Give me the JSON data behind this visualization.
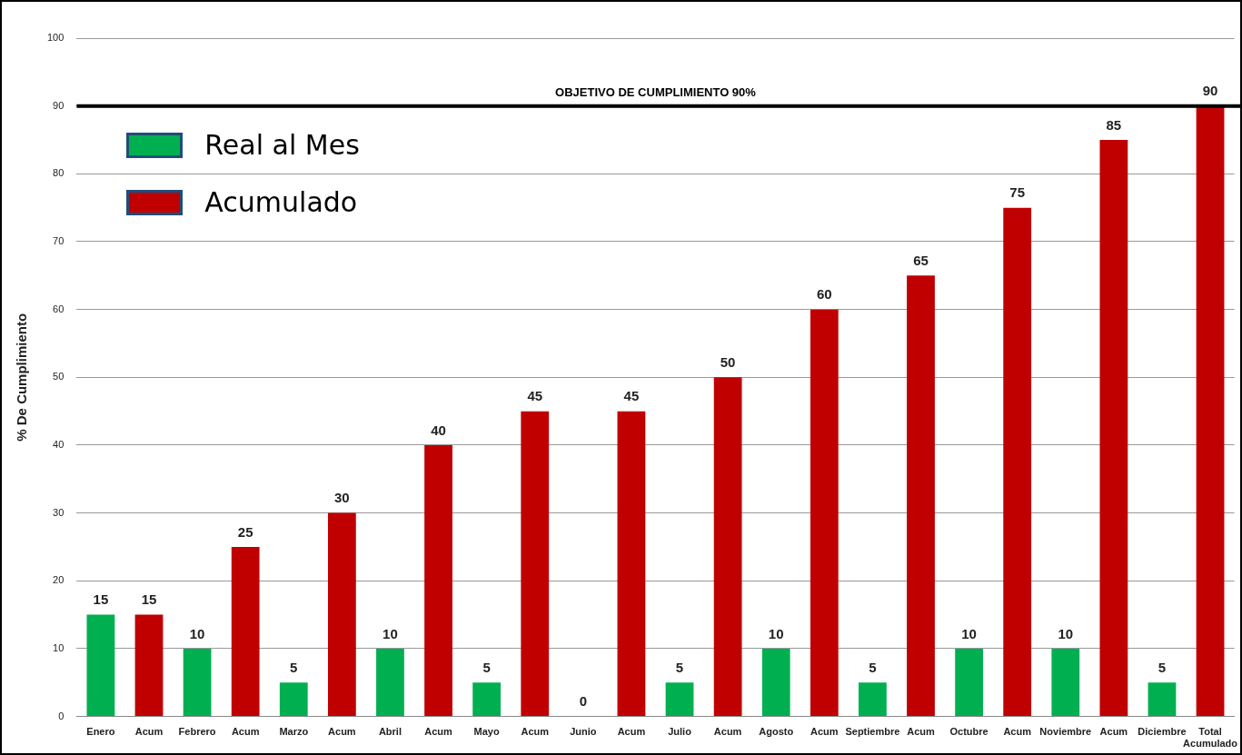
{
  "chart_data": {
    "type": "bar",
    "ylabel": "% De Cumplimiento",
    "categories": [
      "Enero",
      "Acum",
      "Febrero",
      "Acum",
      "Marzo",
      "Acum",
      "Abril",
      "Acum",
      "Mayo",
      "Acum",
      "Junio",
      "Acum",
      "Julio",
      "Acum",
      "Agosto",
      "Acum",
      "Septiembre",
      "Acum",
      "Octubre",
      "Acum",
      "Noviembre",
      "Acum",
      "Diciembre",
      "Total Acumulado"
    ],
    "series": [
      {
        "name": "Real al Mes",
        "color": "#00b050",
        "values": [
          15,
          null,
          10,
          null,
          5,
          null,
          10,
          null,
          5,
          null,
          0,
          null,
          5,
          null,
          10,
          null,
          5,
          null,
          10,
          null,
          10,
          null,
          5,
          null
        ]
      },
      {
        "name": "Acumulado",
        "color": "#c00000",
        "values": [
          null,
          15,
          null,
          25,
          null,
          30,
          null,
          40,
          null,
          45,
          null,
          45,
          null,
          50,
          null,
          60,
          null,
          65,
          null,
          75,
          null,
          85,
          null,
          90
        ]
      }
    ],
    "ylim": [
      0,
      100
    ],
    "yticks": [
      0,
      10,
      20,
      30,
      40,
      50,
      60,
      70,
      80,
      90,
      100
    ],
    "grid": "y",
    "legend": "top left",
    "data_labels": true,
    "ref_lines": [
      {
        "axis": "y",
        "value": 90,
        "label": "OBJETIVO DE CUMPLIMIENTO 90%",
        "color": "#000000"
      }
    ]
  }
}
